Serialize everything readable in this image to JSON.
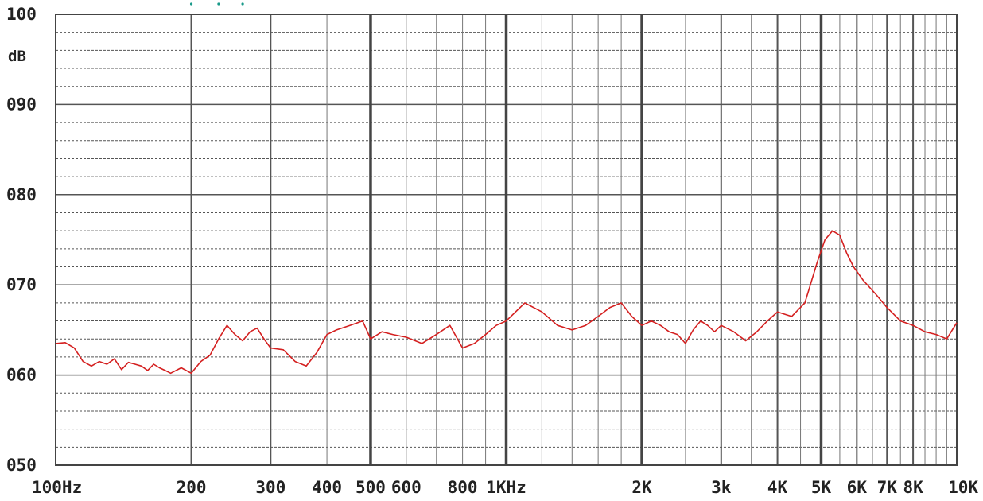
{
  "chart_data": {
    "type": "line",
    "title": "",
    "xlabel": "",
    "ylabel": "dB",
    "x_scale": "log",
    "xlim": [
      100,
      10000
    ],
    "ylim": [
      50,
      100
    ],
    "grid": true,
    "x_ticks": [
      {
        "value": 100,
        "label": "100Hz"
      },
      {
        "value": 200,
        "label": "200"
      },
      {
        "value": 300,
        "label": "300"
      },
      {
        "value": 400,
        "label": "400"
      },
      {
        "value": 500,
        "label": "500"
      },
      {
        "value": 600,
        "label": "600"
      },
      {
        "value": 800,
        "label": "800"
      },
      {
        "value": 1000,
        "label": "1KHz"
      },
      {
        "value": 2000,
        "label": "2K"
      },
      {
        "value": 3000,
        "label": "3k"
      },
      {
        "value": 4000,
        "label": "4K"
      },
      {
        "value": 5000,
        "label": "5K"
      },
      {
        "value": 6000,
        "label": "6K"
      },
      {
        "value": 7000,
        "label": "7K"
      },
      {
        "value": 8000,
        "label": "8K"
      },
      {
        "value": 10000,
        "label": "10K"
      }
    ],
    "y_ticks": [
      {
        "value": 100,
        "label": "100"
      },
      {
        "value": 90,
        "label": "090"
      },
      {
        "value": 80,
        "label": "080"
      },
      {
        "value": 70,
        "label": "070"
      },
      {
        "value": 60,
        "label": "060"
      },
      {
        "value": 50,
        "label": "050"
      }
    ],
    "series": [
      {
        "color": "#d42020",
        "x": [
          100,
          105,
          110,
          115,
          120,
          125,
          130,
          135,
          140,
          145,
          150,
          155,
          160,
          165,
          170,
          175,
          180,
          190,
          200,
          210,
          220,
          230,
          240,
          250,
          260,
          270,
          280,
          290,
          300,
          320,
          340,
          360,
          380,
          400,
          420,
          450,
          480,
          500,
          530,
          560,
          600,
          650,
          700,
          750,
          800,
          850,
          900,
          950,
          1000,
          1100,
          1200,
          1300,
          1400,
          1500,
          1600,
          1700,
          1800,
          1900,
          2000,
          2100,
          2200,
          2300,
          2400,
          2500,
          2600,
          2700,
          2800,
          2900,
          3000,
          3200,
          3400,
          3600,
          3800,
          4000,
          4300,
          4600,
          4900,
          5100,
          5300,
          5500,
          5700,
          5900,
          6200,
          6600,
          7000,
          7500,
          8000,
          8500,
          9000,
          9500,
          10000
        ],
        "y": [
          63.5,
          63.6,
          63.0,
          61.5,
          61.0,
          61.5,
          61.2,
          61.8,
          60.6,
          61.4,
          61.2,
          61.0,
          60.5,
          61.2,
          60.8,
          60.5,
          60.2,
          60.8,
          60.2,
          61.5,
          62.2,
          64.0,
          65.5,
          64.5,
          63.8,
          64.8,
          65.2,
          64.0,
          63.0,
          62.8,
          61.5,
          61.0,
          62.5,
          64.5,
          65.0,
          65.5,
          66.0,
          64.0,
          64.8,
          64.5,
          64.2,
          63.5,
          64.5,
          65.5,
          63.0,
          63.5,
          64.5,
          65.5,
          66.0,
          68.0,
          67.0,
          65.5,
          65.0,
          65.5,
          66.5,
          67.5,
          68.0,
          66.5,
          65.5,
          66.0,
          65.5,
          64.8,
          64.5,
          63.5,
          65.0,
          66.0,
          65.5,
          64.8,
          65.5,
          64.8,
          63.8,
          64.8,
          66.0,
          67.0,
          66.5,
          68.0,
          72.5,
          75.0,
          76.0,
          75.5,
          73.5,
          72.0,
          70.5,
          69.0,
          67.5,
          66.0,
          65.5,
          64.8,
          64.5,
          64.0,
          65.8
        ]
      }
    ],
    "series_trace": {
      "color": "#1a9a8a",
      "x": [
        200,
        230,
        260
      ],
      "y": [
        101.5,
        101.5,
        101.5
      ]
    }
  }
}
